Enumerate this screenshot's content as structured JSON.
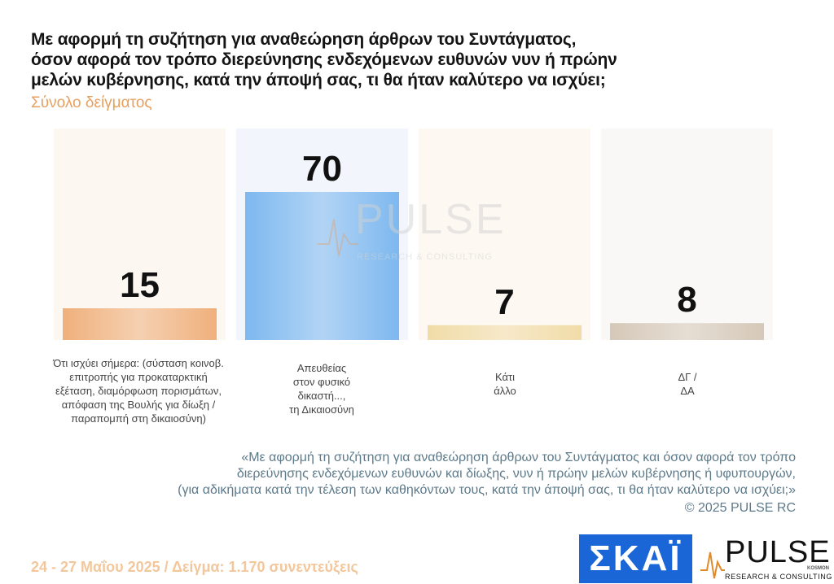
{
  "title_lines": [
    "Με αφορμή τη συζήτηση για αναθεώρηση άρθρων του Συντάγματος,",
    "όσον αφορά τον τρόπο διερεύνησης ενδεχόμενων ευθυνών νυν ή πρώην",
    "μελών κυβέρνησης, κατά την άποψή σας, τι θα ήταν καλύτερο να ισχύει;"
  ],
  "subtitle": "Σύνολο δείγματος",
  "chart_data": {
    "type": "bar",
    "categories": [
      "Ότι ισχύει σήμερα: (σύσταση κοινοβ. επιτροπής για προκαταρκτική εξέταση, διαμόρφωση πορισμάτων, απόφαση της Βουλής για δίωξη / παραπομπή στη δικαιοσύνη)",
      "Απευθείας στον φυσικό δικαστή..., τη Δικαιοσύνη",
      "Κάτι άλλο",
      "ΔΓ / ΔΑ"
    ],
    "values": [
      15,
      70,
      7,
      8
    ],
    "data_labels": [
      "15",
      "70",
      "7",
      "8"
    ],
    "ylim": [
      0,
      100
    ],
    "grid": false,
    "legend": "none",
    "colors": [
      "#efb07c",
      "#7db8ef",
      "#f1dca8",
      "#d5c8b8"
    ],
    "panel_colors": [
      "#fdf7f1",
      "#f2f6fc",
      "#fdf8f2",
      "#faf8f6"
    ]
  },
  "category_lines": [
    [
      "Ότι ισχύει σήμερα: (σύσταση κοινοβ.",
      "επιτροπής για προκαταρκτική",
      "εξέταση, διαμόρφωση πορισμάτων,",
      "απόφαση της Βουλής για δίωξη /",
      "παραπομπή στη δικαιοσύνη)"
    ],
    [
      "Απευθείας",
      "στον φυσικό",
      "δικαστή...,",
      "τη Δικαιοσύνη"
    ],
    [
      "Κάτι",
      "άλλο"
    ],
    [
      "ΔΓ /",
      "ΔΑ"
    ]
  ],
  "note_lines": [
    "«Με αφορμή τη συζήτηση για αναθεώρηση άρθρων του Συντάγματος και όσον αφορά τον τρόπο",
    "διερεύνησης ενδεχόμενων ευθυνών και δίωξης, νυν ή πρώην μελών κυβέρνησης ή υφυπουργών,",
    "(για αδικήματα κατά την τέλεση των καθηκόντων τους, κατά την άποψή σας, τι θα ήταν καλύτερο να ισχύει;»"
  ],
  "copyright": "©  2025  PULSE RC",
  "footer": "24 - 27 Μαΐου 2025  /  Δείγμα:  1.170 συνεντεύξεις",
  "logos": {
    "skai": "ΣΚΑΪ",
    "pulse": "PULSE",
    "pulse_small": "KOSMON",
    "pulse_sub": "RESEARCH & CONSULTING"
  },
  "watermark": {
    "word": "PULSE",
    "sub": "RESEARCH & CONSULTING"
  }
}
